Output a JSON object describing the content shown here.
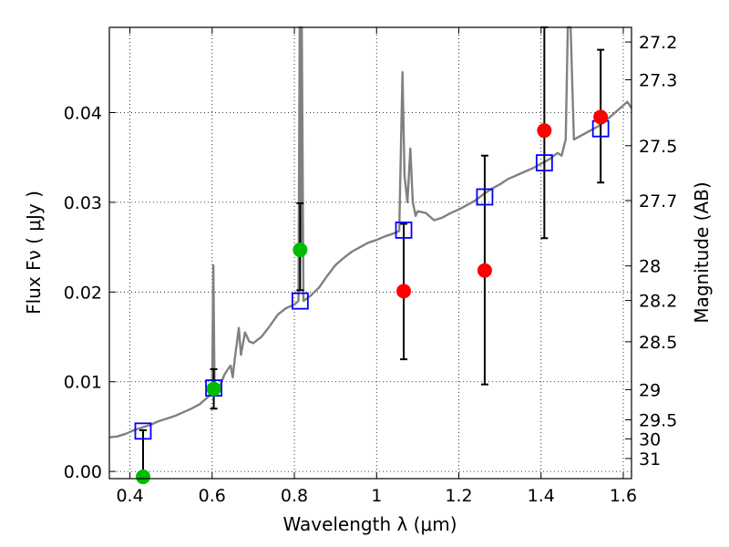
{
  "chart_data": {
    "type": "scatter",
    "xlabel": "Wavelength  λ (μm)",
    "ylabel": "Flux  Fν  ( μJy )",
    "y2label": "Magnitude (AB)",
    "xlim": [
      0.35,
      1.62
    ],
    "ylim": [
      -0.0008,
      0.0495
    ],
    "grid": true,
    "x_ticks": [
      {
        "value": 0.4,
        "label": "0.4"
      },
      {
        "value": 0.6,
        "label": "0.6"
      },
      {
        "value": 0.8,
        "label": "0.8"
      },
      {
        "value": 1.0,
        "label": "1"
      },
      {
        "value": 1.2,
        "label": "1.2"
      },
      {
        "value": 1.4,
        "label": "1.4"
      },
      {
        "value": 1.6,
        "label": "1.6"
      }
    ],
    "y_ticks": [
      {
        "value": 0.0,
        "label": "0.00"
      },
      {
        "value": 0.01,
        "label": "0.01"
      },
      {
        "value": 0.02,
        "label": "0.02"
      },
      {
        "value": 0.03,
        "label": "0.03"
      },
      {
        "value": 0.04,
        "label": "0.04"
      }
    ],
    "y2_ticks": [
      {
        "mag": 27.2,
        "label": "27.2"
      },
      {
        "mag": 27.3,
        "label": "27.3"
      },
      {
        "mag": 27.5,
        "label": "27.5"
      },
      {
        "mag": 27.7,
        "label": "27.7"
      },
      {
        "mag": 28.0,
        "label": "28"
      },
      {
        "mag": 28.2,
        "label": "28.2"
      },
      {
        "mag": 28.5,
        "label": "28.5"
      },
      {
        "mag": 29.0,
        "label": "29"
      },
      {
        "mag": 29.5,
        "label": "29.5"
      },
      {
        "mag": 30.0,
        "label": "30"
      },
      {
        "mag": 31.0,
        "label": "31"
      }
    ],
    "series": [
      {
        "kind": "spectrum_line",
        "color": "#808080",
        "points": [
          [
            0.35,
            0.0038
          ],
          [
            0.37,
            0.0039
          ],
          [
            0.39,
            0.0042
          ],
          [
            0.41,
            0.0046
          ],
          [
            0.43,
            0.0049
          ],
          [
            0.45,
            0.0052
          ],
          [
            0.47,
            0.0056
          ],
          [
            0.49,
            0.0059
          ],
          [
            0.51,
            0.0062
          ],
          [
            0.53,
            0.0066
          ],
          [
            0.55,
            0.007
          ],
          [
            0.57,
            0.0075
          ],
          [
            0.59,
            0.0083
          ],
          [
            0.6,
            0.009
          ],
          [
            0.603,
            0.023
          ],
          [
            0.606,
            0.009
          ],
          [
            0.62,
            0.0096
          ],
          [
            0.63,
            0.0108
          ],
          [
            0.64,
            0.0115
          ],
          [
            0.645,
            0.0118
          ],
          [
            0.65,
            0.0105
          ],
          [
            0.655,
            0.0125
          ],
          [
            0.665,
            0.016
          ],
          [
            0.67,
            0.013
          ],
          [
            0.68,
            0.0155
          ],
          [
            0.69,
            0.0145
          ],
          [
            0.7,
            0.0143
          ],
          [
            0.72,
            0.015
          ],
          [
            0.74,
            0.0162
          ],
          [
            0.76,
            0.0175
          ],
          [
            0.78,
            0.0182
          ],
          [
            0.8,
            0.0186
          ],
          [
            0.81,
            0.019
          ],
          [
            0.813,
            0.05
          ],
          [
            0.816,
            0.025
          ],
          [
            0.818,
            0.05
          ],
          [
            0.822,
            0.019
          ],
          [
            0.84,
            0.0196
          ],
          [
            0.86,
            0.0205
          ],
          [
            0.88,
            0.0218
          ],
          [
            0.9,
            0.023
          ],
          [
            0.92,
            0.0238
          ],
          [
            0.94,
            0.0245
          ],
          [
            0.96,
            0.025
          ],
          [
            0.98,
            0.0255
          ],
          [
            1.0,
            0.0258
          ],
          [
            1.02,
            0.0262
          ],
          [
            1.04,
            0.0265
          ],
          [
            1.055,
            0.0268
          ],
          [
            1.063,
            0.0445
          ],
          [
            1.068,
            0.033
          ],
          [
            1.075,
            0.03
          ],
          [
            1.082,
            0.036
          ],
          [
            1.088,
            0.03
          ],
          [
            1.095,
            0.0285
          ],
          [
            1.1,
            0.029
          ],
          [
            1.12,
            0.0288
          ],
          [
            1.14,
            0.028
          ],
          [
            1.16,
            0.0283
          ],
          [
            1.18,
            0.0288
          ],
          [
            1.2,
            0.0292
          ],
          [
            1.22,
            0.0297
          ],
          [
            1.24,
            0.0302
          ],
          [
            1.26,
            0.0309
          ],
          [
            1.28,
            0.0315
          ],
          [
            1.3,
            0.032
          ],
          [
            1.32,
            0.0326
          ],
          [
            1.34,
            0.033
          ],
          [
            1.36,
            0.0334
          ],
          [
            1.38,
            0.0338
          ],
          [
            1.4,
            0.0343
          ],
          [
            1.42,
            0.0348
          ],
          [
            1.44,
            0.0355
          ],
          [
            1.45,
            0.0352
          ],
          [
            1.46,
            0.037
          ],
          [
            1.465,
            0.05
          ],
          [
            1.472,
            0.05
          ],
          [
            1.48,
            0.037
          ],
          [
            1.5,
            0.0375
          ],
          [
            1.52,
            0.038
          ],
          [
            1.54,
            0.0385
          ],
          [
            1.56,
            0.0392
          ],
          [
            1.58,
            0.04
          ],
          [
            1.6,
            0.0408
          ],
          [
            1.61,
            0.0412
          ],
          [
            1.62,
            0.0405
          ]
        ]
      },
      {
        "kind": "model_squares",
        "color": "#0000ff",
        "points": [
          [
            0.432,
            0.0045
          ],
          [
            0.604,
            0.0093
          ],
          [
            0.814,
            0.019
          ],
          [
            1.066,
            0.0269
          ],
          [
            1.263,
            0.0306
          ],
          [
            1.408,
            0.0344
          ],
          [
            1.545,
            0.0382
          ]
        ]
      },
      {
        "kind": "green_points",
        "color": "#00bb00",
        "points": [
          {
            "x": 0.432,
            "y": -0.0006,
            "yerr_low": 0.0,
            "yerr_high": 0.0052
          },
          {
            "x": 0.604,
            "y": 0.0092,
            "yerr_low": 0.0022,
            "yerr_high": 0.0022
          },
          {
            "x": 0.814,
            "y": 0.0247,
            "yerr_low": 0.0045,
            "yerr_high": 0.0052
          }
        ]
      },
      {
        "kind": "red_points",
        "color": "#ff0000",
        "points": [
          {
            "x": 1.066,
            "y": 0.0201,
            "yerr_low": 0.0076,
            "yerr_high": 0.0075
          },
          {
            "x": 1.263,
            "y": 0.0224,
            "yerr_low": 0.0127,
            "yerr_high": 0.0128
          },
          {
            "x": 1.408,
            "y": 0.038,
            "yerr_low": 0.012,
            "yerr_high": 0.012
          },
          {
            "x": 1.545,
            "y": 0.0395,
            "yerr_low": 0.0073,
            "yerr_high": 0.0075
          }
        ]
      }
    ]
  }
}
